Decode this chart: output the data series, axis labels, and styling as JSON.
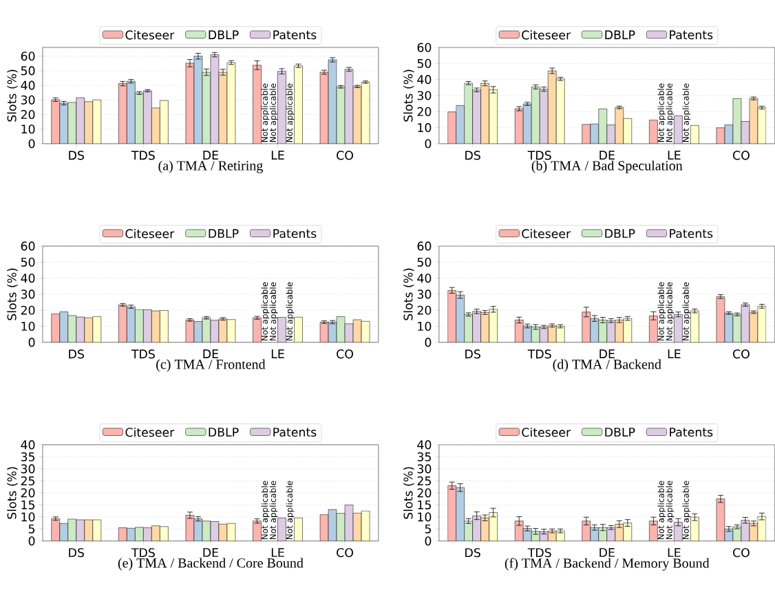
{
  "chart_data": [
    {
      "type": "bar",
      "title": "(a) TMA / Retiring",
      "ylabel": "Slots (%)",
      "categories": [
        "DS",
        "TDS",
        "DE",
        "LE",
        "CO"
      ],
      "ylim": [
        0,
        66
      ],
      "yticks": [
        0,
        10,
        20,
        30,
        40,
        50,
        60
      ],
      "grid": "y",
      "legend": "top",
      "series": [
        {
          "name": "Citeseer",
          "color": "#fbb4ae",
          "values": [
            30.2,
            41.2,
            55.2,
            53.8,
            49
          ],
          "errors": [
            1.2,
            1.5,
            2.5,
            3,
            1.4
          ]
        },
        {
          "color": "#b3cde3",
          "values": [
            27.8,
            42.8,
            60,
            null,
            57.5
          ],
          "errors": [
            1.2,
            1.2,
            2,
            null,
            1.5
          ]
        },
        {
          "name": "DBLP",
          "color": "#ccebc5",
          "values": [
            28.3,
            34.7,
            49,
            null,
            39
          ],
          "errors": [
            null,
            1,
            2.2,
            null,
            0.9
          ]
        },
        {
          "name": "Patents",
          "color": "#decbe4",
          "values": [
            31.5,
            36.3,
            61,
            49.6,
            51
          ],
          "errors": [
            null,
            0.8,
            1.5,
            1.8,
            1.3
          ]
        },
        {
          "color": "#fed9a6",
          "values": [
            28.8,
            24.5,
            49,
            null,
            39.2
          ],
          "errors": [
            null,
            null,
            2,
            null,
            0.8
          ]
        },
        {
          "color": "#ffffcc",
          "values": [
            30,
            29.6,
            55.6,
            53.4,
            42.2
          ],
          "errors": [
            null,
            null,
            1.3,
            1.2,
            0.8
          ]
        }
      ],
      "annotations": [
        {
          "text": "Not applicable",
          "x": "LE",
          "y": 0
        },
        {
          "text": "Not applicable",
          "x": "LE",
          "y": 0
        },
        {
          "text": "Not applicable",
          "x": "LE",
          "y": 0
        }
      ]
    },
    {
      "type": "bar",
      "title": "(b) TMA / Bad Speculation",
      "ylabel": "Slots (%)",
      "categories": [
        "DS",
        "TDS",
        "DE",
        "LE",
        "CO"
      ],
      "ylim": [
        0,
        60
      ],
      "yticks": [
        0,
        10,
        20,
        30,
        40,
        50,
        60
      ],
      "grid": "y",
      "legend": "top",
      "series": [
        {
          "name": "Citeseer",
          "color": "#fbb4ae",
          "values": [
            19.8,
            21.8,
            12,
            14.7,
            9.9
          ],
          "errors": [
            null,
            1.3,
            null,
            null,
            null
          ]
        },
        {
          "color": "#b3cde3",
          "values": [
            23.8,
            24.8,
            12.3,
            null,
            11.7
          ],
          "errors": [
            null,
            1,
            null,
            null,
            null
          ]
        },
        {
          "name": "DBLP",
          "color": "#ccebc5",
          "values": [
            37.8,
            35.4,
            21.7,
            null,
            28.1
          ],
          "errors": [
            1,
            1.3,
            null,
            null,
            null
          ]
        },
        {
          "name": "Patents",
          "color": "#decbe4",
          "values": [
            33.5,
            34,
            11.7,
            17.4,
            13.9
          ],
          "errors": [
            1.2,
            1.3,
            null,
            null,
            null
          ]
        },
        {
          "color": "#fed9a6",
          "values": [
            37.6,
            45.4,
            22.6,
            null,
            28.2
          ],
          "errors": [
            1.5,
            1.7,
            0.8,
            null,
            0.9
          ]
        },
        {
          "color": "#ffffcc",
          "values": [
            33.6,
            40.4,
            15.7,
            11.4,
            22.5
          ],
          "errors": [
            2,
            1,
            null,
            null,
            0.9
          ]
        }
      ],
      "annotations": [
        {
          "text": "Not applicable",
          "x": "LE",
          "y": 0
        },
        {
          "text": "Not applicable",
          "x": "LE",
          "y": 0
        },
        {
          "text": "Not applicable",
          "x": "LE",
          "y": 0
        }
      ]
    },
    {
      "type": "bar",
      "title": "(c) TMA / Frontend",
      "ylabel": "Slots (%)",
      "categories": [
        "DS",
        "TDS",
        "DE",
        "LE",
        "CO"
      ],
      "ylim": [
        0,
        60
      ],
      "yticks": [
        0,
        10,
        20,
        30,
        40,
        50,
        60
      ],
      "grid": "y",
      "legend": "top",
      "series": [
        {
          "name": "Citeseer",
          "color": "#fbb4ae",
          "values": [
            17.7,
            23.4,
            14,
            15.3,
            12.6
          ],
          "errors": [
            null,
            0.8,
            0.8,
            0.9,
            0.8
          ]
        },
        {
          "color": "#b3cde3",
          "values": [
            19,
            22.2,
            13,
            null,
            12.6
          ],
          "errors": [
            null,
            1,
            null,
            null,
            1
          ]
        },
        {
          "name": "DBLP",
          "color": "#ccebc5",
          "values": [
            16.7,
            20.5,
            15.3,
            null,
            16
          ],
          "errors": [
            null,
            null,
            0.8,
            null,
            null
          ]
        },
        {
          "name": "Patents",
          "color": "#decbe4",
          "values": [
            15.8,
            20.3,
            13.8,
            15.6,
            11.6
          ],
          "errors": [
            null,
            null,
            null,
            null,
            null
          ]
        },
        {
          "color": "#fed9a6",
          "values": [
            15.3,
            19.6,
            14.6,
            null,
            14.1
          ],
          "errors": [
            null,
            null,
            0.8,
            null,
            null
          ]
        },
        {
          "color": "#ffffcc",
          "values": [
            16.1,
            19.9,
            14.2,
            15.7,
            13.1
          ],
          "errors": [
            null,
            null,
            null,
            null,
            null
          ]
        }
      ],
      "annotations": [
        {
          "text": "Not applicable",
          "x": "LE",
          "y": 0
        },
        {
          "text": "Not applicable",
          "x": "LE",
          "y": 0
        },
        {
          "text": "Not applicable",
          "x": "LE",
          "y": 0
        }
      ]
    },
    {
      "type": "bar",
      "title": "(d) TMA / Backend",
      "ylabel": "Slots (%)",
      "categories": [
        "DS",
        "TDS",
        "DE",
        "LE",
        "CO"
      ],
      "ylim": [
        0,
        60
      ],
      "yticks": [
        0,
        10,
        20,
        30,
        40,
        50,
        60
      ],
      "grid": "y",
      "legend": "top",
      "series": [
        {
          "name": "Citeseer",
          "color": "#fbb4ae",
          "values": [
            32.4,
            13.9,
            18.9,
            16.5,
            28.5
          ],
          "errors": [
            1.8,
            1.8,
            3,
            2.5,
            1.2
          ]
        },
        {
          "color": "#b3cde3",
          "values": [
            29.5,
            10.2,
            14.9,
            null,
            18.2
          ],
          "errors": [
            2,
            1.2,
            1.8,
            null,
            0.8
          ]
        },
        {
          "name": "DBLP",
          "color": "#ccebc5",
          "values": [
            17.4,
            9.6,
            13.9,
            null,
            17.4
          ],
          "errors": [
            1,
            1.5,
            1.7,
            null,
            0.9
          ]
        },
        {
          "name": "Patents",
          "color": "#decbe4",
          "values": [
            19.3,
            9.6,
            13.5,
            17.4,
            23.5
          ],
          "errors": [
            1.4,
            1,
            1.2,
            1.5,
            1
          ]
        },
        {
          "color": "#fed9a6",
          "values": [
            18.6,
            10.5,
            13.9,
            null,
            18.8
          ],
          "errors": [
            1.2,
            1,
            1.6,
            null,
            0.8
          ]
        },
        {
          "color": "#ffffcc",
          "values": [
            20.6,
            10,
            14.9,
            19.6,
            22.5
          ],
          "errors": [
            1.8,
            1,
            1.2,
            1.2,
            1.2
          ]
        }
      ],
      "annotations": [
        {
          "text": "Not applicable",
          "x": "LE",
          "y": 0
        },
        {
          "text": "Not applicable",
          "x": "LE",
          "y": 0
        },
        {
          "text": "Not applicable",
          "x": "LE",
          "y": 0
        }
      ]
    },
    {
      "type": "bar",
      "title": "(e) TMA / Backend / Core Bound",
      "ylabel": "Slots (%)",
      "categories": [
        "DS",
        "TDS",
        "DE",
        "LE",
        "CO"
      ],
      "ylim": [
        0,
        40
      ],
      "yticks": [
        0,
        5,
        10,
        15,
        20,
        25,
        30,
        35,
        40
      ],
      "grid": "y",
      "legend": "top",
      "series": [
        {
          "name": "Citeseer",
          "color": "#fbb4ae",
          "values": [
            9.3,
            5.5,
            10.7,
            8.3,
            11
          ],
          "errors": [
            0.7,
            null,
            1.3,
            0.9,
            null
          ]
        },
        {
          "color": "#b3cde3",
          "values": [
            7.3,
            5.3,
            9.2,
            null,
            13.1
          ],
          "errors": [
            null,
            null,
            0.9,
            null,
            null
          ]
        },
        {
          "name": "DBLP",
          "color": "#ccebc5",
          "values": [
            9.1,
            5.7,
            8.3,
            null,
            11.5
          ],
          "errors": [
            null,
            null,
            null,
            null,
            null
          ]
        },
        {
          "name": "Patents",
          "color": "#decbe4",
          "values": [
            8.8,
            5.5,
            8.1,
            9.6,
            15
          ],
          "errors": [
            null,
            null,
            null,
            null,
            null
          ]
        },
        {
          "color": "#fed9a6",
          "values": [
            8.8,
            6.3,
            7,
            null,
            11.6
          ],
          "errors": [
            null,
            null,
            null,
            null,
            null
          ]
        },
        {
          "color": "#ffffcc",
          "values": [
            8.8,
            6,
            7.3,
            9.6,
            12.5
          ],
          "errors": [
            null,
            null,
            null,
            null,
            null
          ]
        }
      ],
      "annotations": [
        {
          "text": "Not applicable",
          "x": "LE",
          "y": 0
        },
        {
          "text": "Not applicable",
          "x": "LE",
          "y": 0
        },
        {
          "text": "Not applicable",
          "x": "LE",
          "y": 0
        }
      ]
    },
    {
      "type": "bar",
      "title": "(f) TMA / Backend / Memory Bound",
      "ylabel": "Slots (%)",
      "categories": [
        "DS",
        "TDS",
        "DE",
        "LE",
        "CO"
      ],
      "ylim": [
        0,
        40
      ],
      "yticks": [
        0,
        5,
        10,
        15,
        20,
        25,
        30,
        35,
        40
      ],
      "grid": "y",
      "legend": "top",
      "series": [
        {
          "name": "Citeseer",
          "color": "#fbb4ae",
          "values": [
            23,
            8.3,
            8.3,
            8.3,
            17.5
          ],
          "errors": [
            1.5,
            1.8,
            1.6,
            1.6,
            1.5
          ]
        },
        {
          "color": "#b3cde3",
          "values": [
            22.2,
            5.2,
            5.6,
            null,
            5
          ],
          "errors": [
            1.6,
            1,
            1.1,
            null,
            1
          ]
        },
        {
          "name": "DBLP",
          "color": "#ccebc5",
          "values": [
            8.3,
            4,
            5.6,
            null,
            5.9
          ],
          "errors": [
            1,
            1.2,
            1.3,
            null,
            0.8
          ]
        },
        {
          "name": "Patents",
          "color": "#decbe4",
          "values": [
            10.5,
            3.9,
            5.6,
            7.8,
            8.6
          ],
          "errors": [
            1.6,
            1,
            0.8,
            1.5,
            1.2
          ]
        },
        {
          "color": "#fed9a6",
          "values": [
            9.6,
            4.2,
            7,
            null,
            7.3
          ],
          "errors": [
            1.2,
            0.8,
            1.4,
            null,
            1
          ]
        },
        {
          "color": "#ffffcc",
          "values": [
            11.8,
            4.2,
            7.5,
            9.9,
            10.2
          ],
          "errors": [
            1.8,
            0.8,
            1.4,
            1.4,
            1.4
          ]
        }
      ],
      "annotations": [
        {
          "text": "Not applicable",
          "x": "LE",
          "y": 0
        },
        {
          "text": "Not applicable",
          "x": "LE",
          "y": 0
        },
        {
          "text": "Not applicable",
          "x": "LE",
          "y": 0
        }
      ]
    }
  ]
}
